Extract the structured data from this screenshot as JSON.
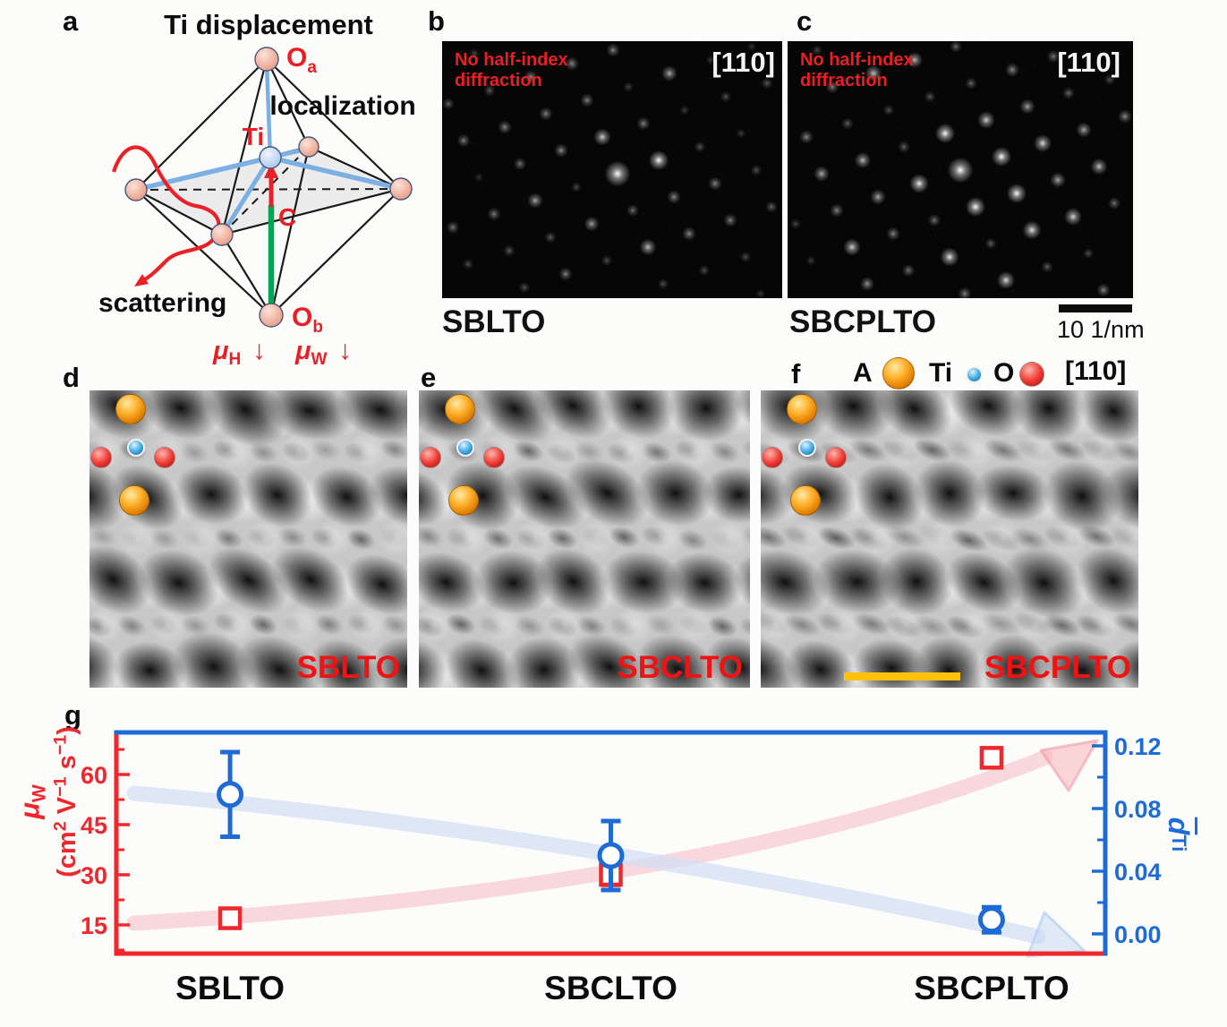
{
  "panel_a": {
    "letter": "a",
    "title": "Ti displacement",
    "localization": "localization",
    "scattering": "scattering",
    "ti_label": "Ti",
    "o_main": "O",
    "o_a_sub": "a",
    "o_b_sub": "b",
    "c_axis_label": "C",
    "mu_symbol": "μ",
    "mu_h_sub": "H",
    "mu_w_sub": "W",
    "down_arrow": "↓"
  },
  "panel_b": {
    "letter": "b",
    "note1": "No half-index",
    "note2": "diffraction",
    "zone_axis": "[110]",
    "sample": "SBLTO"
  },
  "panel_c": {
    "letter": "c",
    "note1": "No half-index",
    "note2": "diffraction",
    "zone_axis": "[110]",
    "sample": "SBCPLTO",
    "scalebar": "10 1/nm"
  },
  "legend": {
    "a": "A",
    "ti": "Ti",
    "o": "O",
    "zone_axis": "[110]"
  },
  "panel_d": {
    "letter": "d",
    "sample": "SBLTO"
  },
  "panel_e": {
    "letter": "e",
    "sample": "SBCLTO"
  },
  "panel_f": {
    "letter": "f",
    "sample": "SBCPLTO"
  },
  "chart_labels": {
    "letter": "g",
    "mu": "μ",
    "mu_sub": "W",
    "units_1": "(cm",
    "units_sup1": "2",
    "units_2": " V",
    "units_sup2": "−1",
    "units_3": " s",
    "units_sup3": "−1",
    "units_4": ")",
    "d": "d",
    "d_sub": "Ti"
  },
  "chart_data": {
    "type": "scatter",
    "categories": [
      "SBLTO",
      "SBCLTO",
      "SBCPLTO"
    ],
    "series": [
      {
        "name": "μW",
        "axis": "left",
        "marker": "square",
        "color": "#f0282d",
        "values": [
          17,
          30,
          65
        ],
        "errors": [
          0,
          3,
          0
        ]
      },
      {
        "name": "d̄Ti",
        "axis": "right",
        "marker": "circle",
        "color": "#1e6bd6",
        "values": [
          0.089,
          0.05,
          0.009
        ],
        "errors": [
          0.027,
          0.022,
          0.008
        ]
      }
    ],
    "left_axis": {
      "label": "μW (cm2 V−1 s−1)",
      "ticks": [
        15,
        30,
        45,
        60
      ],
      "minor_step": 7.5,
      "range": [
        6.5,
        72.5
      ],
      "color": "#f0282d"
    },
    "right_axis": {
      "label": "d̄Ti",
      "ticks": [
        "0.00",
        "0.04",
        "0.08",
        "0.12"
      ],
      "tick_values": [
        0,
        0.04,
        0.08,
        0.12
      ],
      "minor_step": 0.02,
      "range": [
        -0.013,
        0.129
      ],
      "color": "#1e6bd6"
    },
    "trend_arrows": [
      {
        "series": "μW",
        "direction": "up",
        "color": "#f7ccd1"
      },
      {
        "series": "d̄Ti",
        "direction": "down",
        "color": "#d3e0f4"
      }
    ],
    "grid": false,
    "legend": false
  }
}
